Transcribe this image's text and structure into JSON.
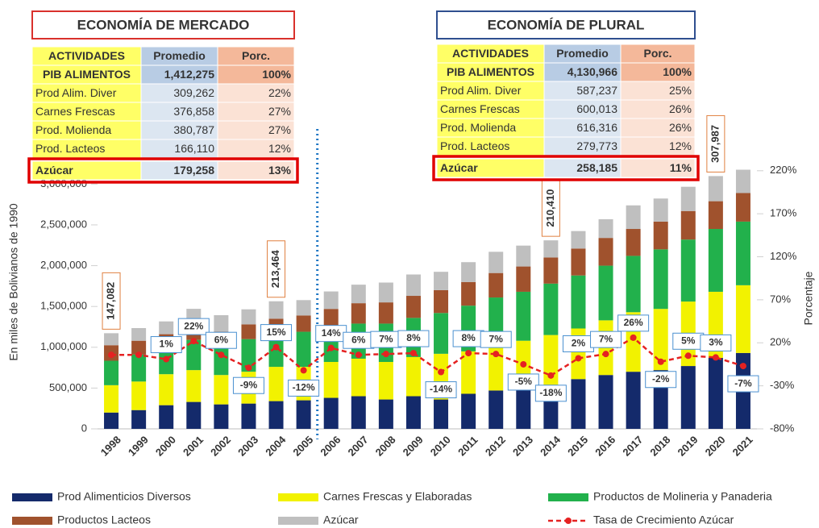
{
  "tables": [
    {
      "title": "ECONOMÍA DE MERCADO",
      "header": [
        "ACTIVIDADES",
        "Promedio",
        "Porc."
      ],
      "rows": [
        [
          "PIB ALIMENTOS",
          "1,412,275",
          "100%"
        ],
        [
          "Prod Alim. Diver",
          "309,262",
          "22%"
        ],
        [
          "Carnes Frescas",
          "376,858",
          "27%"
        ],
        [
          "Prod. Molienda",
          "380,787",
          "27%"
        ],
        [
          "Prod. Lacteos",
          "166,110",
          "12%"
        ],
        [
          "Azúcar",
          "179,258",
          "13%"
        ]
      ]
    },
    {
      "title": "ECONOMÍA DE PLURAL",
      "header": [
        "ACTIVIDADES",
        "Promedio",
        "Porc."
      ],
      "rows": [
        [
          "PIB ALIMENTOS",
          "4,130,966",
          "100%"
        ],
        [
          "Prod Alim. Diver",
          "587,237",
          "25%"
        ],
        [
          "Carnes Frescas",
          "600,013",
          "26%"
        ],
        [
          "Prod. Molienda",
          "616,316",
          "26%"
        ],
        [
          "Prod. Lacteos",
          "279,773",
          "12%"
        ],
        [
          "Azúcar",
          "258,185",
          "11%"
        ]
      ]
    }
  ],
  "chart_data": {
    "type": "bar",
    "stacked": true,
    "y_label": "En miles de Bolivianos de 1990",
    "y2_label": "Porcentaje",
    "categories": [
      "1998",
      "1999",
      "2000",
      "2001",
      "2002",
      "2003",
      "2004",
      "2005",
      "2006",
      "2007",
      "2008",
      "2009",
      "2010",
      "2011",
      "2012",
      "2013",
      "2014",
      "2015",
      "2016",
      "2017",
      "2018",
      "2019",
      "2020",
      "2021"
    ],
    "ylim": [
      0,
      3290000
    ],
    "yticks": [
      0,
      {
        "value": 500000,
        "label": "500,000"
      },
      {
        "value": 1000000,
        "label": "1,000,000"
      },
      {
        "value": 1500000,
        "label": "1,500,000"
      },
      {
        "value": 2000000,
        "label": "2,000,000"
      },
      {
        "value": 2500000,
        "label": "2,500,000"
      },
      {
        "value": 3000000,
        "label": "3,000,000"
      }
    ],
    "y2lim": [
      -80,
      232
    ],
    "y2ticks": [
      {
        "value": -80,
        "label": "-80%"
      },
      {
        "value": -30,
        "label": "-30%"
      },
      {
        "value": 20,
        "label": "20%"
      },
      {
        "value": 70,
        "label": "70%"
      },
      {
        "value": 120,
        "label": "120%"
      },
      {
        "value": 170,
        "label": "170%"
      },
      {
        "value": 220,
        "label": "220%"
      }
    ],
    "series": [
      {
        "name": "Prod Alimenticios Diversos",
        "color": "#142a6b",
        "values": [
          200000,
          230000,
          290000,
          330000,
          300000,
          310000,
          340000,
          350000,
          380000,
          400000,
          360000,
          400000,
          360000,
          430000,
          470000,
          520000,
          540000,
          610000,
          660000,
          700000,
          720000,
          770000,
          870000,
          930000
        ]
      },
      {
        "name": "Carnes Frescas y Elaboradas",
        "color": "#f2f200",
        "values": [
          335000,
          350000,
          380000,
          390000,
          360000,
          390000,
          420000,
          410000,
          440000,
          460000,
          460000,
          480000,
          560000,
          520000,
          550000,
          560000,
          610000,
          620000,
          670000,
          730000,
          750000,
          790000,
          810000,
          830000
        ]
      },
      {
        "name": "Productos de Molineria y Panaderia",
        "color": "#22b14c",
        "values": [
          300000,
          330000,
          310000,
          370000,
          360000,
          400000,
          400000,
          430000,
          420000,
          430000,
          470000,
          480000,
          500000,
          560000,
          590000,
          600000,
          630000,
          650000,
          670000,
          690000,
          730000,
          760000,
          770000,
          780000
        ]
      },
      {
        "name": "Productos Lacteos",
        "color": "#a0522d",
        "values": [
          190000,
          170000,
          180000,
          190000,
          170000,
          180000,
          190000,
          200000,
          230000,
          250000,
          260000,
          270000,
          280000,
          290000,
          300000,
          310000,
          320000,
          330000,
          340000,
          330000,
          340000,
          350000,
          340000,
          350000
        ]
      },
      {
        "name": "Azúcar",
        "color": "#bfbfbf",
        "values": [
          147082,
          155000,
          157000,
          191000,
          203000,
          185000,
          213464,
          188000,
          214000,
          227000,
          243000,
          262000,
          225000,
          243000,
          260000,
          256000,
          210410,
          214000,
          229000,
          289000,
          283000,
          297000,
          307987,
          286000
        ],
        "value_labels": [
          "147,082",
          null,
          null,
          null,
          null,
          null,
          "213,464",
          null,
          null,
          null,
          null,
          null,
          null,
          null,
          null,
          null,
          "210,410",
          null,
          null,
          null,
          null,
          null,
          "307,987",
          null
        ]
      },
      {
        "name": "Tasa de Crecimiento Azúcar",
        "type": "line",
        "axis": "y2",
        "color": "#e52222",
        "values": [
          6,
          6,
          1,
          22,
          6,
          -9,
          15,
          -12,
          14,
          6,
          7,
          8,
          -14,
          8,
          7,
          -5,
          -18,
          2,
          7,
          26,
          -2,
          5,
          3,
          -7
        ],
        "value_labels": [
          null,
          null,
          "1%",
          "22%",
          "6%",
          "-9%",
          "15%",
          "-12%",
          "14%",
          "6%",
          "7%",
          "8%",
          "-14%",
          "8%",
          "7%",
          "-5%",
          "-18%",
          "2%",
          "7%",
          "26%",
          "-2%",
          "5%",
          "3%",
          "-7%"
        ]
      }
    ]
  }
}
